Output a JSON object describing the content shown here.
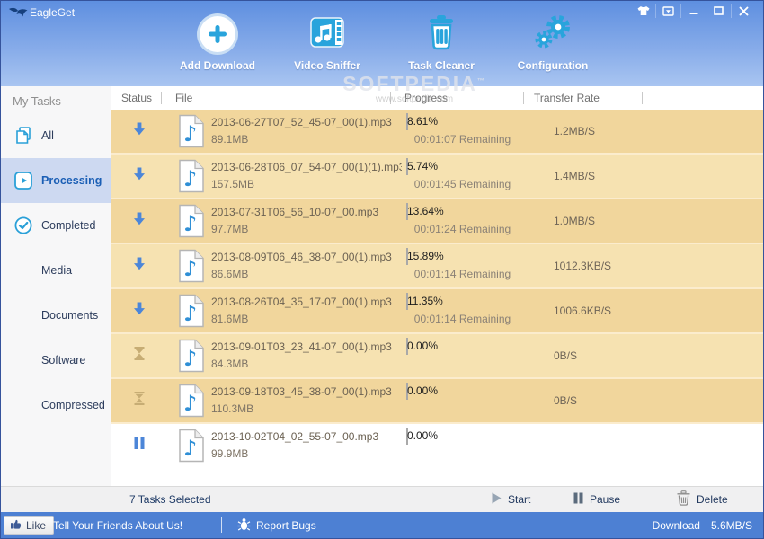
{
  "window": {
    "title": "EagleGet"
  },
  "titlebar": {
    "window_controls": [
      "skin-icon",
      "menu-icon",
      "minimize-icon",
      "maximize-icon",
      "close-icon"
    ]
  },
  "toolbar": {
    "items": [
      {
        "label": "Add Download",
        "icon": "add"
      },
      {
        "label": "Video Sniffer",
        "icon": "sniffer"
      },
      {
        "label": "Task Cleaner",
        "icon": "cleaner"
      },
      {
        "label": "Configuration",
        "icon": "config"
      }
    ]
  },
  "watermark": {
    "line1": "SOFTPEDIA",
    "tm": "™",
    "line2": "www.softpedia.com"
  },
  "sidebar": {
    "header": "My Tasks",
    "items": [
      {
        "label": "All",
        "icon": "copy",
        "selected": false
      },
      {
        "label": "Processing",
        "icon": "play",
        "selected": true
      },
      {
        "label": "Completed",
        "icon": "check",
        "selected": false
      },
      {
        "label": "Media",
        "icon": "",
        "selected": false
      },
      {
        "label": "Documents",
        "icon": "",
        "selected": false
      },
      {
        "label": "Software",
        "icon": "",
        "selected": false
      },
      {
        "label": "Compressed",
        "icon": "",
        "selected": false
      }
    ]
  },
  "table": {
    "columns": [
      "Status",
      "File",
      "Progress",
      "Transfer Rate"
    ],
    "rows": [
      {
        "status": "downloading",
        "name": "2013-06-27T07_52_45-07_00(1).mp3",
        "size": "89.1MB",
        "progress": "8.61%",
        "progress_value": 8.61,
        "remaining": "00:01:07 Remaining",
        "rate": "1.2MB/S",
        "selected": true
      },
      {
        "status": "downloading",
        "name": "2013-06-28T06_07_54-07_00(1)(1).mp3",
        "size": "157.5MB",
        "progress": "5.74%",
        "progress_value": 5.74,
        "remaining": "00:01:45 Remaining",
        "rate": "1.4MB/S",
        "selected": true
      },
      {
        "status": "downloading",
        "name": "2013-07-31T06_56_10-07_00.mp3",
        "size": "97.7MB",
        "progress": "13.64%",
        "progress_value": 13.64,
        "remaining": "00:01:24 Remaining",
        "rate": "1.0MB/S",
        "selected": true
      },
      {
        "status": "downloading",
        "name": "2013-08-09T06_46_38-07_00(1).mp3",
        "size": "86.6MB",
        "progress": "15.89%",
        "progress_value": 15.89,
        "remaining": "00:01:14 Remaining",
        "rate": "1012.3KB/S",
        "selected": true
      },
      {
        "status": "downloading",
        "name": "2013-08-26T04_35_17-07_00(1).mp3",
        "size": "81.6MB",
        "progress": "11.35%",
        "progress_value": 11.35,
        "remaining": "00:01:14 Remaining",
        "rate": "1006.6KB/S",
        "selected": true
      },
      {
        "status": "queued",
        "name": "2013-09-01T03_23_41-07_00(1).mp3",
        "size": "84.3MB",
        "progress": "0.00%",
        "progress_value": 0,
        "remaining": "",
        "rate": "0B/S",
        "selected": true
      },
      {
        "status": "queued",
        "name": "2013-09-18T03_45_38-07_00(1).mp3",
        "size": "110.3MB",
        "progress": "0.00%",
        "progress_value": 0,
        "remaining": "",
        "rate": "0B/S",
        "selected": true
      },
      {
        "status": "paused",
        "name": "2013-10-02T04_02_55-07_00.mp3",
        "size": "99.9MB",
        "progress": "0.00%",
        "progress_value": 0,
        "remaining": "",
        "rate": "",
        "selected": false
      }
    ]
  },
  "action_bar": {
    "selection": "7 Tasks Selected",
    "start": "Start",
    "pause": "Pause",
    "delete": "Delete"
  },
  "status_bar": {
    "like": "Like",
    "tell_friends": "Tell Your Friends About Us!",
    "report_bugs": "Report Bugs",
    "download_label": "Download",
    "download_rate": "5.6MB/S"
  },
  "colors": {
    "titlebar_blue": "#5e8fe0",
    "accent_cyan": "#29a4dc",
    "selection_tan": "#f1d69c",
    "selection_tan_alt": "#f6e2b1",
    "sidebar_selected": "#cdd9f1",
    "statusbar_blue": "#4d80d3",
    "progress_fill": "#4c86d8"
  }
}
